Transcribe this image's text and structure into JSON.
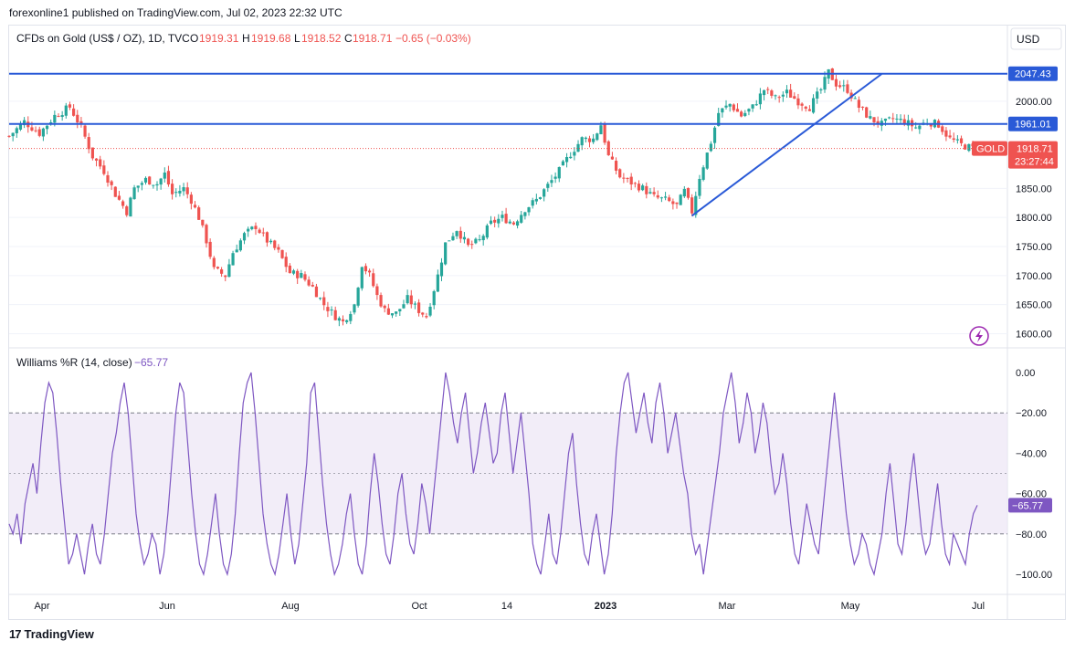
{
  "header": {
    "published": "forexonline1 published on TradingView.com, Jul 02, 2023 22:32 UTC"
  },
  "footer": {
    "brand": "TradingView",
    "logo_icon": "tradingview-logo-icon"
  },
  "main_chart": {
    "symbol_title": "CFDs on Gold (US$ / OZ), 1D, TVC",
    "ohlc": {
      "o_label": "O",
      "o": "1919.31",
      "h_label": "H",
      "h": "1919.68",
      "l_label": "L",
      "l": "1918.52",
      "c_label": "C",
      "c": "1918.71",
      "change": "−0.65 (−0.03%)"
    },
    "currency": "USD",
    "colors": {
      "up": "#26a69a",
      "down": "#ef5350",
      "levels": "#2a5ad7",
      "trendline": "#2a5ad7",
      "close_line": "#ef5350"
    }
  },
  "indicator": {
    "title": "Williams %R (14, close)",
    "value": "−65.77",
    "color": "#7e57c2",
    "band_fill": "#ede7f6"
  },
  "chart_data": [
    {
      "type": "candlestick",
      "title": "CFDs on Gold (US$ / OZ), 1D, TVC",
      "x_range": [
        "2023-03-20 approx",
        "2023-07-03"
      ],
      "x_ticks": [
        "Apr",
        "Jun",
        "Aug",
        "Oct",
        "14",
        "2023",
        "Mar",
        "May",
        "Jul"
      ],
      "y_ticks": [
        "2000.00",
        "1850.00",
        "1800.00",
        "1750.00",
        "1700.00",
        "1650.00",
        "1600.00"
      ],
      "ylim": [
        1585,
        2080
      ],
      "horizontal_levels": [
        {
          "label": "2047.43",
          "value": 2047.43
        },
        {
          "label": "1961.01",
          "value": 1961.01
        }
      ],
      "last_price": {
        "symbol": "GOLD",
        "value": "1918.71",
        "countdown": "23:27:44",
        "numeric": 1918.71
      },
      "trendline": {
        "from": [
          1803,
          "Mar 2023 start"
        ],
        "to": [
          2047,
          "May 2023"
        ]
      },
      "price_path": [
        [
          0,
          1940
        ],
        [
          4,
          1965
        ],
        [
          8,
          1945
        ],
        [
          12,
          1975
        ],
        [
          16,
          1990
        ],
        [
          19,
          1955
        ],
        [
          22,
          1905
        ],
        [
          25,
          1880
        ],
        [
          28,
          1840
        ],
        [
          31,
          1810
        ],
        [
          33,
          1850
        ],
        [
          36,
          1865
        ],
        [
          39,
          1858
        ],
        [
          41,
          1875
        ],
        [
          43,
          1840
        ],
        [
          46,
          1850
        ],
        [
          48,
          1830
        ],
        [
          50,
          1800
        ],
        [
          52,
          1760
        ],
        [
          54,
          1710
        ],
        [
          57,
          1700
        ],
        [
          59,
          1740
        ],
        [
          62,
          1770
        ],
        [
          65,
          1785
        ],
        [
          68,
          1760
        ],
        [
          71,
          1740
        ],
        [
          74,
          1705
        ],
        [
          77,
          1700
        ],
        [
          80,
          1680
        ],
        [
          83,
          1650
        ],
        [
          86,
          1630
        ],
        [
          88,
          1620
        ],
        [
          91,
          1650
        ],
        [
          93,
          1720
        ],
        [
          95,
          1700
        ],
        [
          97,
          1665
        ],
        [
          99,
          1640
        ],
        [
          102,
          1635
        ],
        [
          105,
          1660
        ],
        [
          108,
          1640
        ],
        [
          110,
          1630
        ],
        [
          113,
          1700
        ],
        [
          115,
          1755
        ],
        [
          118,
          1780
        ],
        [
          121,
          1750
        ],
        [
          124,
          1760
        ],
        [
          127,
          1790
        ],
        [
          130,
          1800
        ],
        [
          133,
          1790
        ],
        [
          136,
          1815
        ],
        [
          139,
          1830
        ],
        [
          142,
          1855
        ],
        [
          145,
          1880
        ],
        [
          148,
          1910
        ],
        [
          151,
          1935
        ],
        [
          154,
          1935
        ],
        [
          156,
          1960
        ],
        [
          158,
          1905
        ],
        [
          161,
          1870
        ],
        [
          164,
          1860
        ],
        [
          167,
          1850
        ],
        [
          170,
          1835
        ],
        [
          173,
          1830
        ],
        [
          176,
          1820
        ],
        [
          178,
          1845
        ],
        [
          180,
          1810
        ],
        [
          182,
          1870
        ],
        [
          185,
          1930
        ],
        [
          187,
          1980
        ],
        [
          190,
          1995
        ],
        [
          193,
          1975
        ],
        [
          196,
          1990
        ],
        [
          199,
          2020
        ],
        [
          202,
          2005
        ],
        [
          205,
          2015
        ],
        [
          208,
          2000
        ],
        [
          211,
          1990
        ],
        [
          214,
          2020
        ],
        [
          216,
          2050
        ],
        [
          218,
          2030
        ],
        [
          221,
          2020
        ],
        [
          224,
          1990
        ],
        [
          227,
          1970
        ],
        [
          230,
          1960
        ],
        [
          233,
          1970
        ],
        [
          236,
          1965
        ],
        [
          239,
          1955
        ],
        [
          242,
          1965
        ],
        [
          245,
          1960
        ],
        [
          248,
          1935
        ],
        [
          251,
          1925
        ],
        [
          254,
          1918.71
        ]
      ]
    },
    {
      "type": "line",
      "title": "Williams %R (14, close)",
      "y_ticks": [
        "0.00",
        "−20.00",
        "−40.00",
        "−60.00",
        "−80.00",
        "−100.00"
      ],
      "ylim": [
        -100,
        0
      ],
      "band": [
        -80,
        -20
      ],
      "midline": -50,
      "last_value": -65.77,
      "values": [
        -75,
        -80,
        -70,
        -85,
        -65,
        -55,
        -45,
        -60,
        -35,
        -15,
        -5,
        -10,
        -30,
        -55,
        -75,
        -95,
        -90,
        -80,
        -90,
        -100,
        -85,
        -75,
        -90,
        -95,
        -80,
        -60,
        -40,
        -30,
        -15,
        -5,
        -20,
        -45,
        -70,
        -85,
        -95,
        -90,
        -80,
        -85,
        -100,
        -90,
        -70,
        -45,
        -20,
        -5,
        -10,
        -35,
        -60,
        -80,
        -95,
        -100,
        -90,
        -75,
        -60,
        -80,
        -95,
        -100,
        -90,
        -70,
        -40,
        -15,
        -5,
        0,
        -20,
        -45,
        -70,
        -85,
        -95,
        -100,
        -90,
        -75,
        -60,
        -80,
        -95,
        -85,
        -65,
        -45,
        -10,
        -5,
        -30,
        -55,
        -75,
        -90,
        -100,
        -95,
        -85,
        -70,
        -60,
        -80,
        -95,
        -100,
        -85,
        -60,
        -40,
        -55,
        -75,
        -90,
        -95,
        -80,
        -60,
        -50,
        -70,
        -85,
        -90,
        -75,
        -55,
        -65,
        -80,
        -60,
        -40,
        -20,
        0,
        -10,
        -25,
        -35,
        -20,
        -10,
        -30,
        -50,
        -40,
        -25,
        -15,
        -30,
        -45,
        -40,
        -20,
        -10,
        -30,
        -50,
        -35,
        -20,
        -40,
        -60,
        -85,
        -95,
        -100,
        -85,
        -70,
        -90,
        -95,
        -80,
        -60,
        -40,
        -30,
        -55,
        -75,
        -90,
        -95,
        -80,
        -70,
        -85,
        -100,
        -90,
        -70,
        -40,
        -20,
        -5,
        0,
        -15,
        -30,
        -20,
        -10,
        -25,
        -35,
        -15,
        -5,
        -20,
        -40,
        -30,
        -20,
        -35,
        -50,
        -60,
        -80,
        -90,
        -85,
        -100,
        -85,
        -70,
        -55,
        -40,
        -20,
        -10,
        0,
        -15,
        -35,
        -25,
        -10,
        -20,
        -40,
        -30,
        -15,
        -25,
        -45,
        -60,
        -55,
        -40,
        -55,
        -75,
        -90,
        -95,
        -80,
        -65,
        -75,
        -85,
        -90,
        -70,
        -50,
        -30,
        -10,
        -30,
        -50,
        -70,
        -85,
        -95,
        -90,
        -80,
        -85,
        -95,
        -100,
        -90,
        -80,
        -60,
        -45,
        -65,
        -85,
        -90,
        -75,
        -55,
        -40,
        -60,
        -80,
        -90,
        -85,
        -70,
        -55,
        -75,
        -90,
        -95,
        -80,
        -85,
        -90,
        -95,
        -80,
        -70,
        -65.77
      ]
    }
  ]
}
